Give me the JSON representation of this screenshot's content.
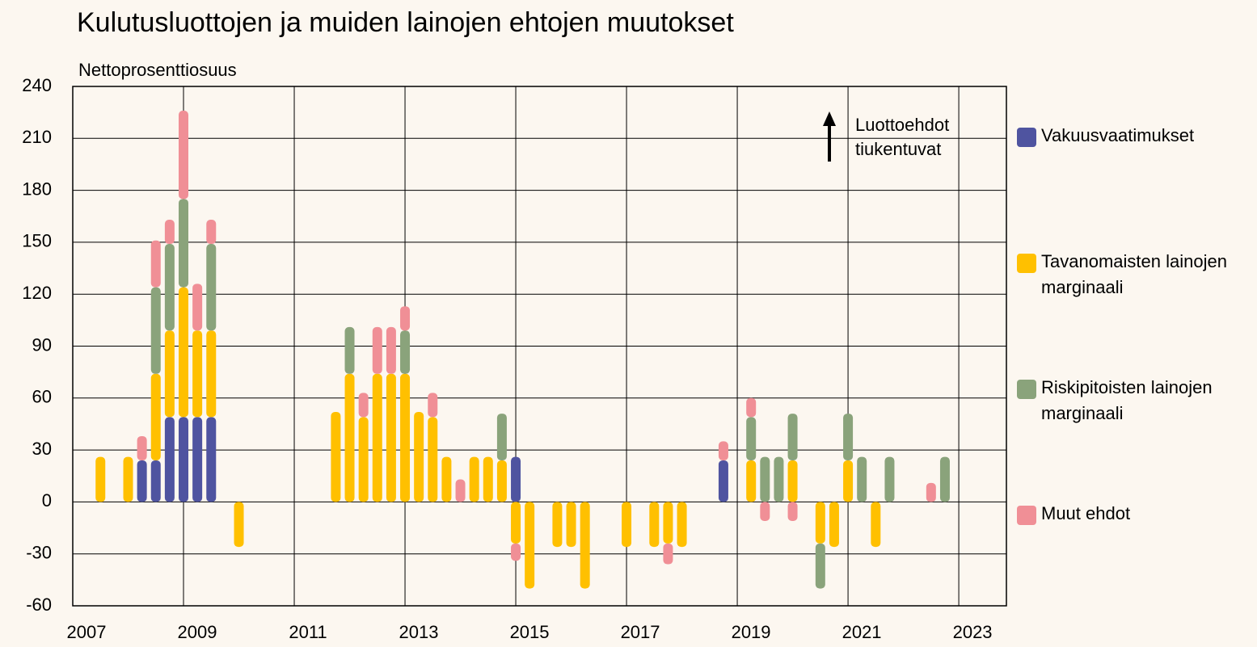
{
  "chart_data": {
    "type": "bar",
    "stacked": true,
    "title": "Kulutusluottojen ja muiden lainojen ehtojen muutokset",
    "y_label": "Nettoprosenttiosuus",
    "annotation": "Luottoehdot tiukentuvat",
    "x": [
      2007.5,
      2008,
      2008.25,
      2008.5,
      2008.75,
      2009,
      2009.25,
      2009.5,
      2010,
      2011.75,
      2012,
      2012.25,
      2012.5,
      2012.75,
      2013,
      2013.25,
      2013.5,
      2013.75,
      2014,
      2014.25,
      2014.5,
      2014.75,
      2015,
      2015.25,
      2015.75,
      2016,
      2016.25,
      2017,
      2017.5,
      2017.75,
      2018,
      2018.75,
      2019.25,
      2019.5,
      2019.75,
      2020,
      2020.5,
      2020.75,
      2021,
      2021.25,
      2021.5,
      2021.75,
      2022.5,
      2022.75
    ],
    "series": [
      {
        "name": "Vakuusvaatimukset",
        "color": "#4f54a0",
        "values": [
          null,
          null,
          24,
          24,
          49,
          49,
          49,
          49,
          null,
          null,
          null,
          null,
          null,
          null,
          null,
          null,
          null,
          null,
          null,
          null,
          null,
          null,
          26,
          null,
          null,
          null,
          null,
          null,
          null,
          null,
          null,
          24,
          null,
          null,
          null,
          null,
          null,
          null,
          null,
          null,
          null,
          null,
          null,
          null
        ]
      },
      {
        "name": "Tavanomaisten lainojen marginaali",
        "color": "#ffc000",
        "values": [
          26,
          26,
          null,
          50,
          50,
          75,
          50,
          50,
          -26,
          52,
          74,
          49,
          74,
          74,
          74,
          52,
          49,
          26,
          null,
          26,
          26,
          24,
          -24,
          -50,
          -26,
          -26,
          -50,
          -26,
          -26,
          -24,
          -26,
          null,
          24,
          null,
          null,
          24,
          -24,
          -26,
          24,
          null,
          -26,
          null,
          null,
          null
        ]
      },
      {
        "name": "Riskipitoisten lainojen marginaali",
        "color": "#8aa37b",
        "values": [
          null,
          null,
          null,
          50,
          50,
          51,
          null,
          50,
          null,
          null,
          27,
          null,
          null,
          null,
          25,
          null,
          null,
          null,
          null,
          null,
          null,
          27,
          null,
          null,
          null,
          null,
          null,
          null,
          null,
          null,
          null,
          null,
          25,
          26,
          26,
          27,
          -26,
          null,
          27,
          26,
          null,
          26,
          null,
          26
        ]
      },
      {
        "name": "Muut ehdot",
        "color": "#f08f96",
        "values": [
          null,
          null,
          14,
          27,
          14,
          51,
          27,
          14,
          null,
          null,
          null,
          14,
          27,
          27,
          14,
          null,
          14,
          null,
          13,
          null,
          null,
          null,
          -10,
          null,
          null,
          null,
          null,
          null,
          null,
          -12,
          null,
          11,
          11,
          -11,
          null,
          -11,
          null,
          null,
          null,
          null,
          null,
          null,
          11,
          null
        ]
      }
    ],
    "xlim": [
      2007,
      2023.86
    ],
    "xticks": [
      2007,
      2009,
      2011,
      2013,
      2015,
      2017,
      2019,
      2021,
      2023
    ],
    "ylim": [
      -60,
      240
    ],
    "yticks": [
      -60,
      -30,
      0,
      30,
      60,
      90,
      120,
      150,
      180,
      210,
      240
    ],
    "grid": true
  }
}
